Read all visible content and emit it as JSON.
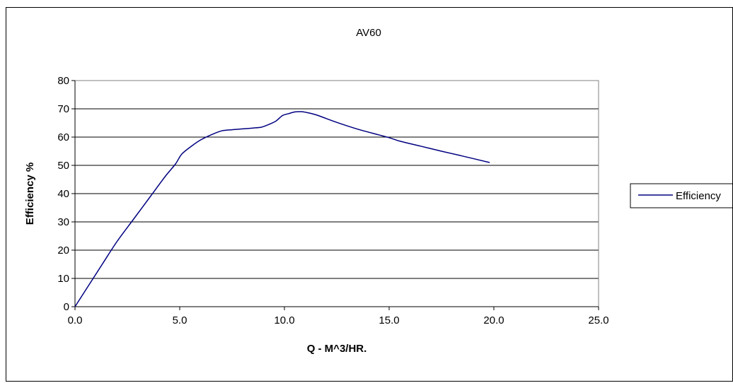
{
  "chart_data": {
    "type": "line",
    "title": "AV60",
    "xlabel": "Q - M^3/HR.",
    "ylabel": "Efficiency %",
    "xlim": [
      0,
      25
    ],
    "ylim": [
      0,
      80
    ],
    "x_ticks": [
      "0.0",
      "5.0",
      "10.0",
      "15.0",
      "20.0",
      "25.0"
    ],
    "y_ticks": [
      "0",
      "10",
      "20",
      "30",
      "40",
      "50",
      "60",
      "70",
      "80"
    ],
    "grid": "horizontal",
    "legend_position": "right",
    "series": [
      {
        "name": "Efficiency",
        "color": "#000080",
        "x": [
          0.0,
          1.3,
          2.0,
          2.8,
          3.6,
          4.3,
          4.8,
          5.1,
          5.6,
          6.0,
          6.5,
          7.0,
          7.5,
          8.0,
          8.5,
          8.9,
          9.2,
          9.6,
          9.9,
          10.2,
          10.5,
          10.8,
          11.0,
          11.5,
          12.5,
          13.5,
          14.5,
          15.0,
          15.5,
          16.5,
          17.5,
          18.5,
          19.8
        ],
        "y": [
          0,
          15,
          23,
          31,
          39,
          46,
          50.5,
          54,
          57,
          59,
          60.8,
          62.2,
          62.6,
          62.9,
          63.2,
          63.5,
          64.3,
          65.7,
          67.6,
          68.3,
          68.9,
          69.0,
          68.8,
          67.9,
          65.2,
          62.8,
          60.8,
          59.8,
          58.6,
          56.8,
          55.0,
          53.3,
          51.0
        ]
      }
    ]
  }
}
